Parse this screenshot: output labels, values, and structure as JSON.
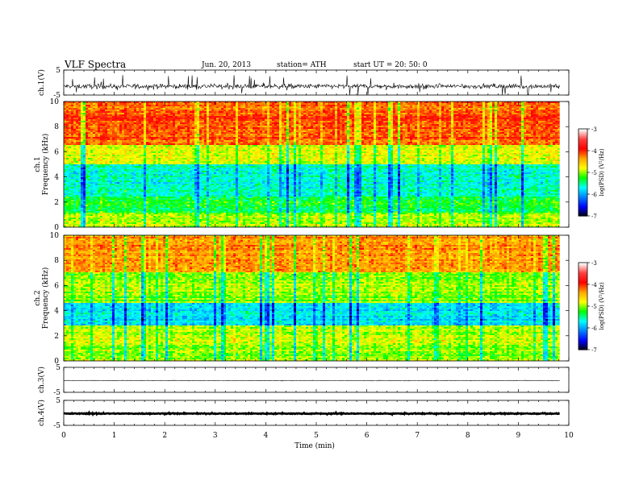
{
  "header": {
    "title": "VLF  Spectra",
    "date": "Jun. 20, 2013",
    "station": "station= ATH",
    "start": "start  UT  =    20: 50: 0"
  },
  "colorbar": {
    "label": "log(PSD) (V²/Hz)",
    "ticks": [
      "-3",
      "-4",
      "-5",
      "-6",
      "-7"
    ],
    "colors": [
      "#ffffff",
      "#ff4040",
      "#ff0000",
      "#ffa500",
      "#ffff00",
      "#00ff00",
      "#00ffff",
      "#0080ff",
      "#0000ff",
      "#000000"
    ]
  },
  "chart_data": [
    {
      "type": "line",
      "panel": "ch1_waveform",
      "ylabel": "ch.1(V)",
      "ylim": [
        -5,
        5
      ],
      "yticks": [
        "5",
        "-5"
      ],
      "description_values": {
        "center": -1.5,
        "amplitude_typical": 1.5,
        "amplitude_peak": 4.5
      }
    },
    {
      "type": "heatmap",
      "panel": "ch1_spectrogram",
      "ylabel_line1": "ch.1",
      "ylabel_line2": "Frequency (kHz)",
      "ylim": [
        0,
        10
      ],
      "yticks": [
        "10",
        "8",
        "6",
        "4",
        "2",
        "0"
      ],
      "clim": [
        -7,
        -3
      ],
      "bands": [
        {
          "fmin": 6.5,
          "fmax": 10,
          "level": -4.1
        },
        {
          "fmin": 5,
          "fmax": 6.5,
          "level": -4.8
        },
        {
          "fmin": 2.5,
          "fmax": 5,
          "level": -5.6
        },
        {
          "fmin": 1.2,
          "fmax": 2.5,
          "level": -5.3
        },
        {
          "fmin": 0,
          "fmax": 1.2,
          "level": -4.9
        }
      ]
    },
    {
      "type": "heatmap",
      "panel": "ch2_spectrogram",
      "ylabel_line1": "ch.2",
      "ylabel_line2": "Frequency (kHz)",
      "ylim": [
        0,
        10
      ],
      "yticks": [
        "10",
        "8",
        "6",
        "4",
        "2",
        "0"
      ],
      "clim": [
        -7,
        -3
      ],
      "bands": [
        {
          "fmin": 7,
          "fmax": 10,
          "level": -4.3
        },
        {
          "fmin": 4.6,
          "fmax": 7,
          "level": -5.0
        },
        {
          "fmin": 2.8,
          "fmax": 4.6,
          "level": -5.7
        },
        {
          "fmin": 0,
          "fmax": 2.8,
          "level": -4.9
        }
      ]
    },
    {
      "type": "line",
      "panel": "ch3_waveform",
      "ylabel": "ch.3(V)",
      "ylim": [
        -5,
        5
      ],
      "yticks": [
        "5",
        "-5"
      ],
      "description_values": {
        "center": -0.3,
        "amplitude_typical": 0.1,
        "amplitude_peak": 0.2
      }
    },
    {
      "type": "line",
      "panel": "ch4_waveform",
      "ylabel": "ch.4(V)",
      "ylim": [
        -5,
        5
      ],
      "yticks": [
        "5",
        "-5"
      ],
      "description_values": {
        "center": -0.3,
        "amplitude_typical": 0.3,
        "amplitude_peak": 0.4
      }
    }
  ],
  "xaxis": {
    "label": "Time  (min)",
    "xlim": [
      0,
      10
    ],
    "data_end": 9.82,
    "ticks": [
      "0",
      "1",
      "2",
      "3",
      "4",
      "5",
      "6",
      "7",
      "8",
      "9",
      "10"
    ]
  }
}
